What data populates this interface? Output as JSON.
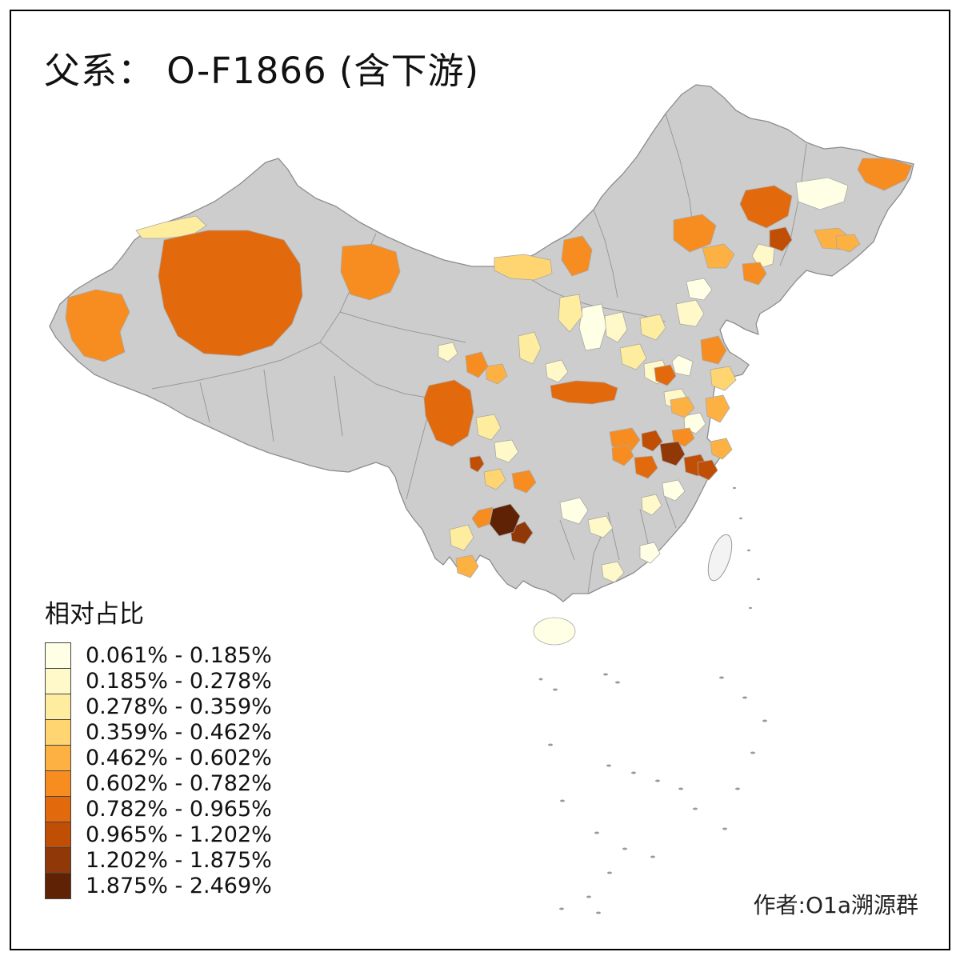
{
  "title": "父系： O-F1866 (含下游)",
  "credit": "作者:O1a溯源群",
  "legend": {
    "title": "相对占比",
    "items": [
      {
        "label": "0.061% - 0.185%",
        "color": "#FFFFE5"
      },
      {
        "label": "0.185% - 0.278%",
        "color": "#FFF8C8"
      },
      {
        "label": "0.278% - 0.359%",
        "color": "#FEEC9F"
      },
      {
        "label": "0.359% - 0.462%",
        "color": "#FED571"
      },
      {
        "label": "0.462% - 0.602%",
        "color": "#FDB143"
      },
      {
        "label": "0.602% - 0.782%",
        "color": "#F78D20"
      },
      {
        "label": "0.782% - 0.965%",
        "color": "#E26A0C"
      },
      {
        "label": "0.965% - 1.202%",
        "color": "#C04E04"
      },
      {
        "label": "1.202% - 1.875%",
        "color": "#903808"
      },
      {
        "label": "1.875% - 2.469%",
        "color": "#5F2205"
      }
    ]
  },
  "map_colors": {
    "no_data": "#CDCDCD",
    "boundary": "#8C8C8C",
    "background": "#FFFFFF",
    "frame": "#000000"
  }
}
